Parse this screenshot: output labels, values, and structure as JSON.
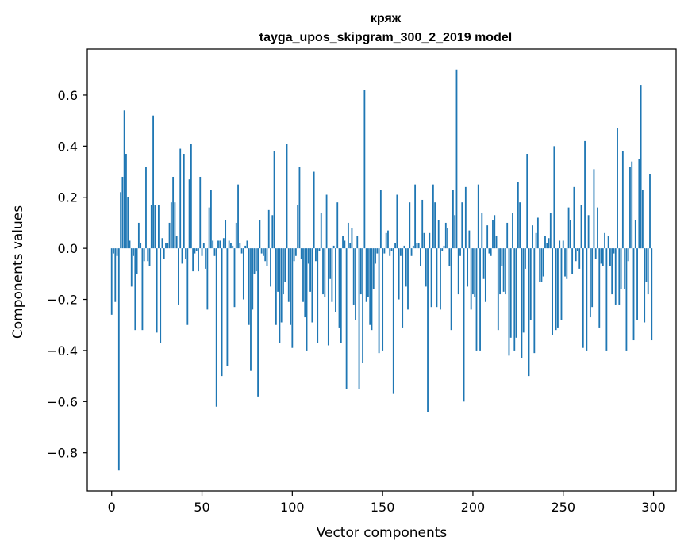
{
  "chart_data": {
    "type": "bar",
    "title": "кряж",
    "subtitle": "tayga_upos_skipgram_300_2_2019 model",
    "xlabel": "Vector components",
    "ylabel": "Components values",
    "xlim": [
      -13.5,
      312.5
    ],
    "ylim": [
      -0.95,
      0.78
    ],
    "xticks": [
      0,
      50,
      100,
      150,
      200,
      250,
      300
    ],
    "xtick_labels": [
      "0",
      "50",
      "100",
      "150",
      "200",
      "250",
      "300"
    ],
    "yticks": [
      -0.8,
      -0.6,
      -0.4,
      -0.2,
      0.0,
      0.2,
      0.4,
      0.6
    ],
    "ytick_labels": [
      "−0.8",
      "−0.6",
      "−0.4",
      "−0.2",
      "0.0",
      "0.2",
      "0.4",
      "0.6"
    ],
    "bar_color": "#1f77b4",
    "grid": false,
    "values": [
      -0.26,
      -0.02,
      -0.21,
      -0.03,
      -0.87,
      0.22,
      0.28,
      0.54,
      0.37,
      0.2,
      0.03,
      -0.15,
      -0.03,
      -0.32,
      -0.1,
      0.1,
      0.02,
      -0.32,
      -0.05,
      0.32,
      -0.05,
      -0.07,
      0.17,
      0.52,
      0.17,
      -0.33,
      0.17,
      -0.37,
      0.04,
      -0.04,
      0.02,
      0.02,
      0.1,
      0.18,
      0.28,
      0.18,
      0.05,
      -0.22,
      0.39,
      -0.06,
      0.37,
      -0.04,
      -0.3,
      0.27,
      0.41,
      -0.09,
      -0.02,
      -0.01,
      -0.09,
      0.28,
      -0.03,
      0.02,
      -0.08,
      -0.24,
      0.16,
      0.23,
      0.03,
      -0.03,
      -0.62,
      0.03,
      0.03,
      -0.5,
      0.04,
      0.11,
      -0.46,
      0.03,
      0.02,
      0.01,
      -0.23,
      0.1,
      0.25,
      0.02,
      -0.02,
      -0.2,
      0.01,
      0.03,
      -0.3,
      -0.48,
      -0.24,
      -0.1,
      -0.09,
      -0.58,
      0.11,
      -0.02,
      -0.03,
      -0.05,
      -0.07,
      0.15,
      -0.15,
      0.13,
      0.38,
      -0.3,
      -0.17,
      -0.37,
      -0.29,
      -0.18,
      -0.13,
      0.41,
      -0.21,
      -0.3,
      -0.39,
      -0.05,
      -0.03,
      0.17,
      0.32,
      -0.04,
      -0.21,
      -0.27,
      -0.4,
      -0.06,
      -0.17,
      -0.29,
      0.3,
      -0.05,
      -0.37,
      -0.01,
      0.14,
      -0.18,
      -0.19,
      0.21,
      -0.38,
      -0.12,
      -0.21,
      0.01,
      -0.25,
      0.18,
      -0.31,
      -0.37,
      0.05,
      0.03,
      -0.55,
      0.1,
      0.02,
      0.08,
      -0.22,
      -0.28,
      0.05,
      -0.55,
      -0.18,
      -0.45,
      0.62,
      -0.21,
      -0.19,
      -0.3,
      -0.32,
      -0.16,
      -0.06,
      -0.02,
      -0.41,
      0.23,
      -0.4,
      -0.02,
      0.06,
      0.07,
      -0.03,
      -0.01,
      -0.57,
      0.02,
      0.21,
      -0.2,
      -0.03,
      -0.31,
      0.01,
      -0.15,
      -0.24,
      0.18,
      -0.03,
      0.01,
      0.25,
      0.02,
      0.02,
      -0.07,
      0.19,
      0.06,
      -0.15,
      -0.64,
      0.06,
      -0.23,
      0.25,
      0.18,
      -0.23,
      0.11,
      -0.24,
      -0.01,
      0.01,
      0.1,
      0.08,
      -0.07,
      -0.32,
      0.23,
      0.13,
      0.7,
      -0.18,
      -0.03,
      0.18,
      -0.6,
      0.24,
      -0.15,
      0.07,
      -0.24,
      -0.18,
      -0.19,
      -0.4,
      0.25,
      -0.4,
      0.14,
      -0.12,
      -0.21,
      0.09,
      -0.02,
      -0.03,
      0.11,
      0.13,
      0.05,
      -0.32,
      -0.18,
      -0.07,
      -0.17,
      -0.18,
      0.1,
      -0.42,
      -0.35,
      0.14,
      -0.4,
      -0.35,
      0.26,
      0.18,
      -0.43,
      -0.33,
      -0.08,
      0.37,
      -0.5,
      -0.28,
      0.09,
      -0.41,
      0.06,
      0.12,
      -0.13,
      -0.13,
      -0.11,
      0.05,
      0.02,
      0.04,
      0.14,
      -0.34,
      0.4,
      -0.32,
      -0.31,
      0.03,
      -0.28,
      0.03,
      -0.11,
      -0.12,
      0.16,
      0.11,
      -0.1,
      0.24,
      -0.05,
      -0.01,
      -0.08,
      0.17,
      -0.39,
      0.42,
      -0.4,
      0.13,
      -0.27,
      -0.23,
      0.31,
      -0.04,
      0.16,
      -0.31,
      -0.06,
      -0.07,
      0.06,
      -0.4,
      0.05,
      -0.07,
      -0.18,
      -0.02,
      -0.22,
      0.47,
      -0.22,
      -0.16,
      0.38,
      -0.16,
      -0.4,
      -0.05,
      0.32,
      0.34,
      -0.36,
      0.11,
      -0.28,
      0.35,
      0.64,
      0.23,
      -0.29,
      -0.13,
      -0.18,
      0.29,
      -0.36
    ]
  }
}
